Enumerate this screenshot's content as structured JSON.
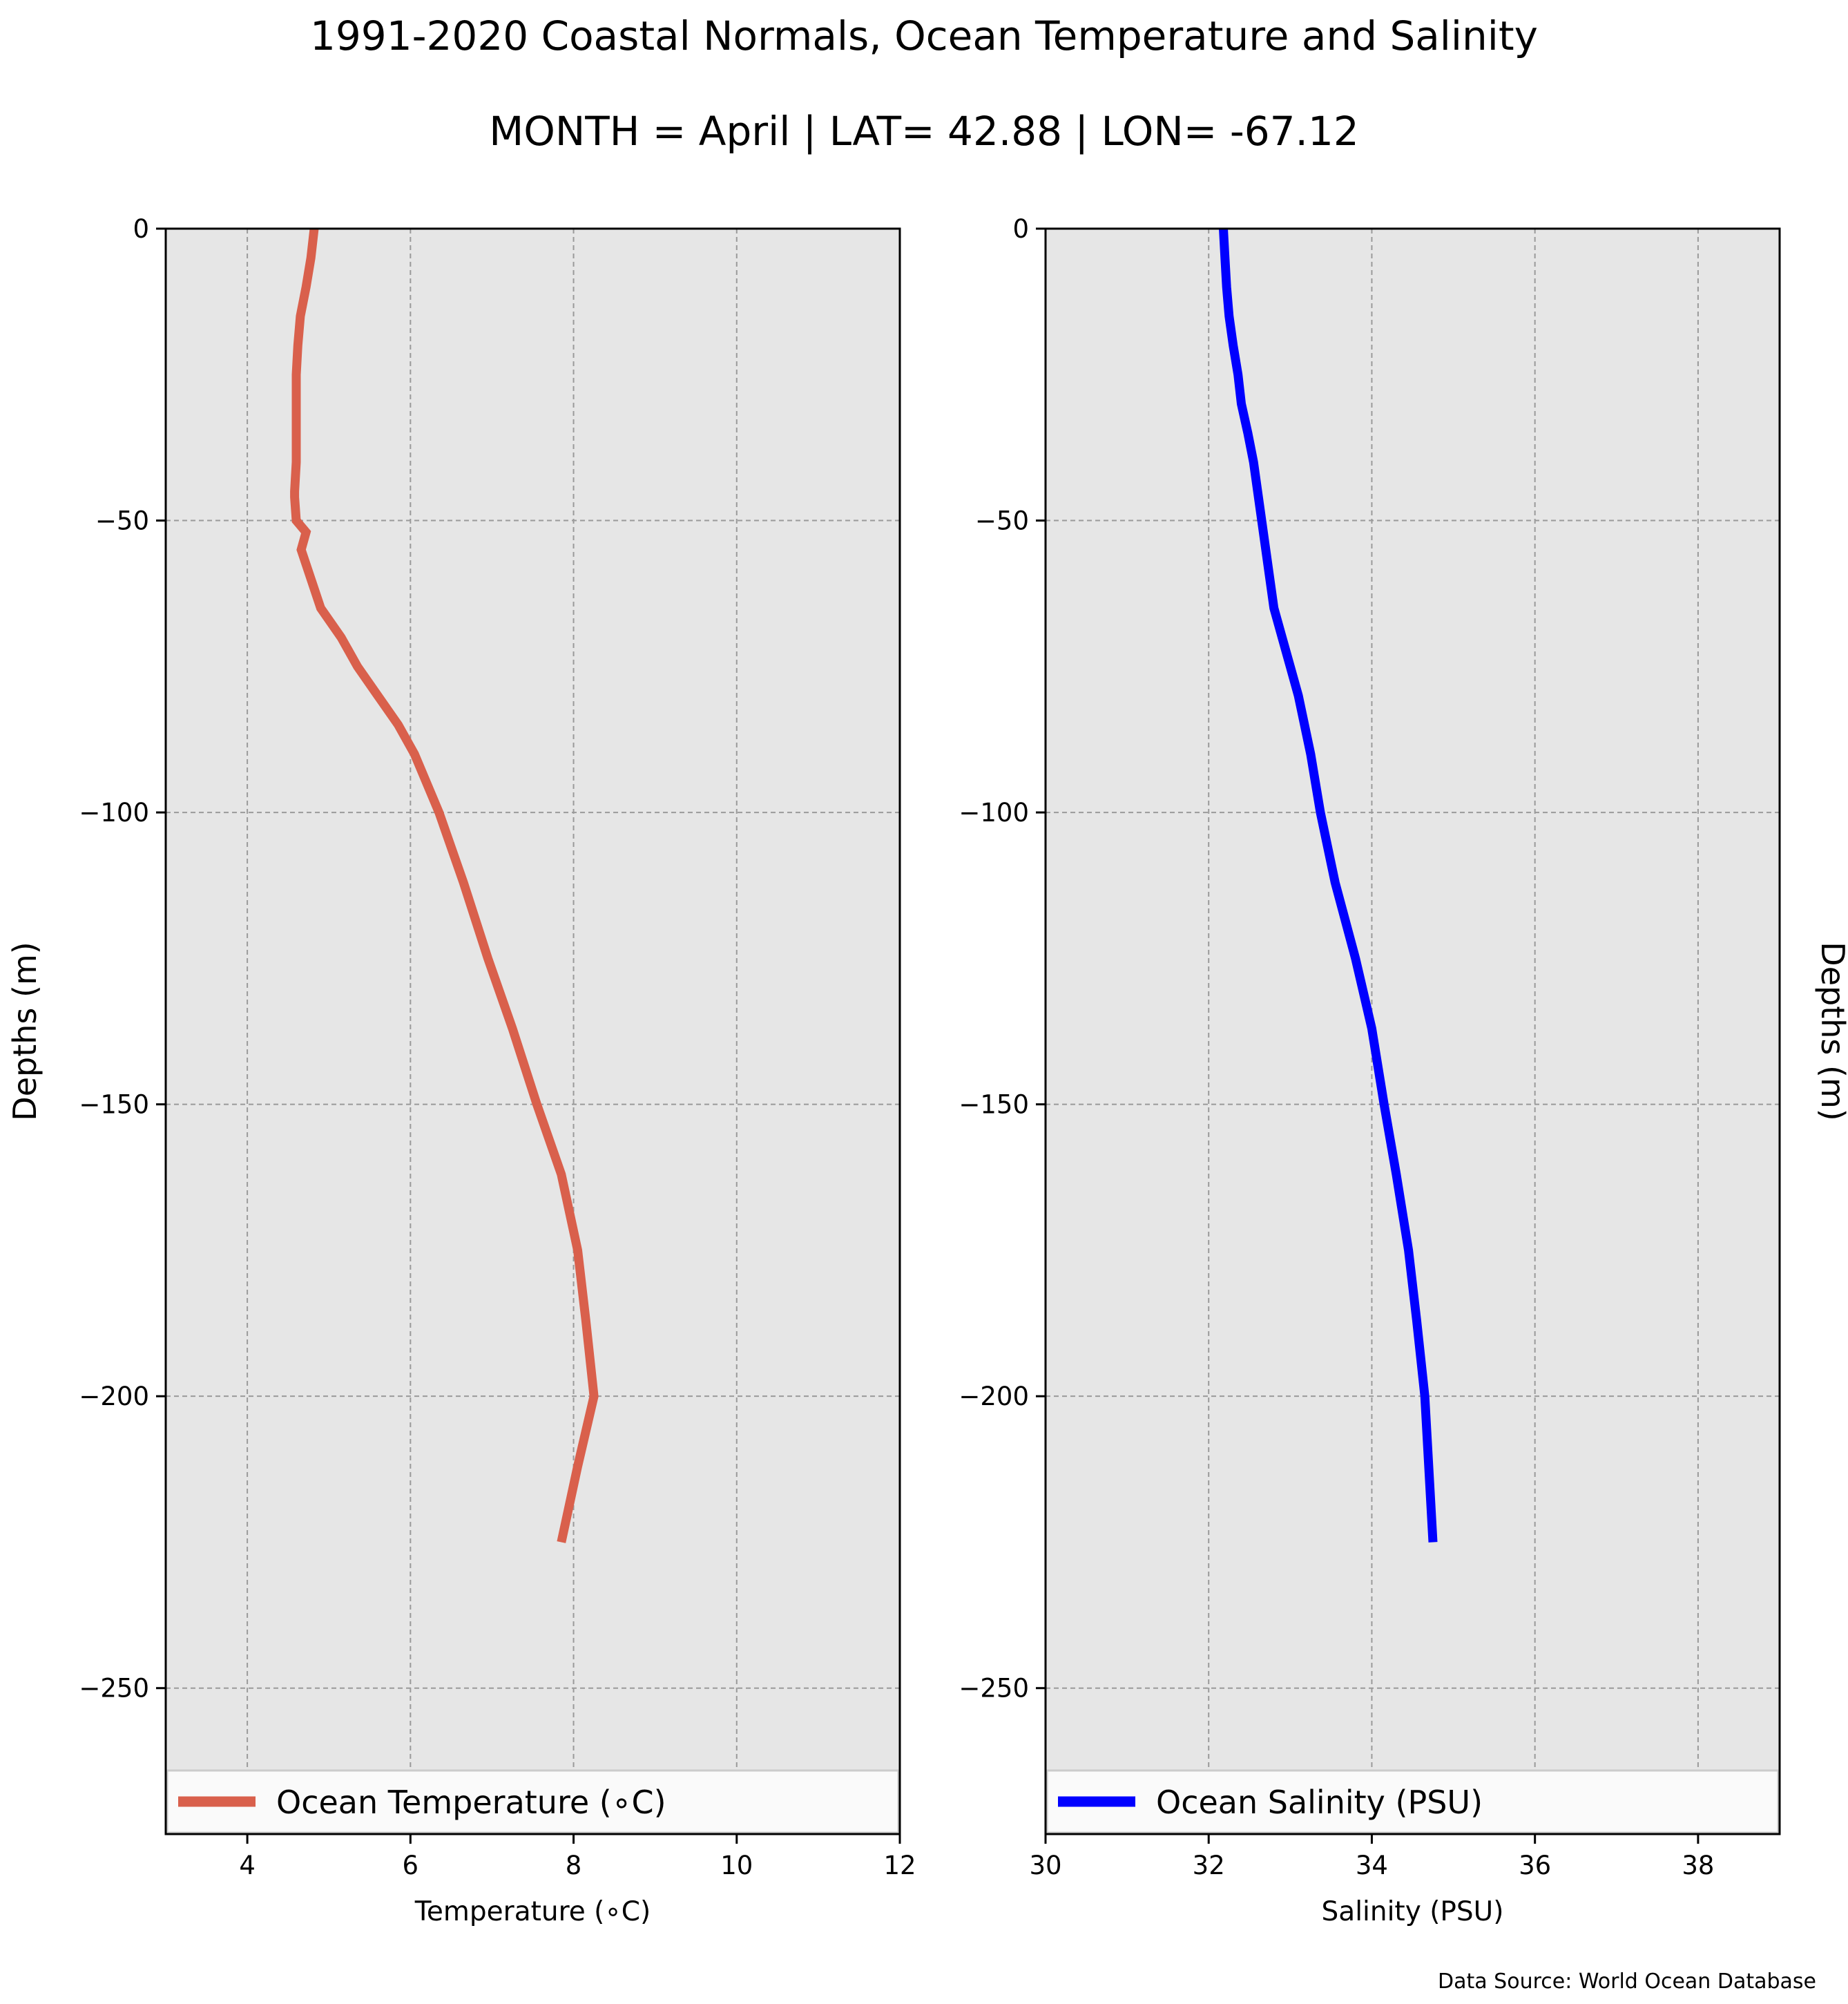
{
  "title": "1991-2020 Coastal Normals, Ocean Temperature and Salinity",
  "subtitle": "MONTH = April | LAT= 42.88 | LON= -67.12",
  "source_note": "Data Source: World Ocean Database",
  "chart_data": [
    {
      "type": "line",
      "xlabel": "Temperature (∘C)",
      "ylabel": "Depths (m)",
      "xlim": [
        3,
        12
      ],
      "ylim": [
        -275,
        0
      ],
      "xticks": [
        4,
        6,
        8,
        10,
        12
      ],
      "xtick_labels": [
        "4",
        "6",
        "8",
        "10",
        "12"
      ],
      "yticks": [
        0,
        -50,
        -100,
        -150,
        -200,
        -250
      ],
      "ytick_labels": [
        "0",
        "−50",
        "−100",
        "−150",
        "−200",
        "−250"
      ],
      "grid": true,
      "background": "#e6e6e6",
      "legend": "bottom",
      "series": [
        {
          "name": "Ocean Temperature (∘C)",
          "color": "#d9604c",
          "x": [
            4.82,
            4.78,
            4.72,
            4.65,
            4.62,
            4.6,
            4.6,
            4.6,
            4.6,
            4.58,
            4.58,
            4.6,
            4.72,
            4.66,
            4.9,
            5.15,
            5.35,
            5.6,
            5.85,
            6.05,
            6.35,
            6.65,
            6.95,
            7.25,
            7.55,
            7.85,
            8.05,
            8.15,
            8.25,
            8.05,
            7.85
          ],
          "y": [
            0,
            -5,
            -10,
            -15,
            -20,
            -25,
            -30,
            -35,
            -40,
            -45,
            -46,
            -50,
            -52,
            -55,
            -65,
            -70,
            -75,
            -80,
            -85,
            -90,
            -100,
            -112,
            -125,
            -137,
            -150,
            -162,
            -175,
            -187,
            -200,
            -212,
            -225
          ]
        }
      ]
    },
    {
      "type": "line",
      "xlabel": "Salinity (PSU)",
      "ylabel": "Depths (m)",
      "xlim": [
        30,
        39
      ],
      "ylim": [
        -275,
        0
      ],
      "xticks": [
        30,
        32,
        34,
        36,
        38
      ],
      "xtick_labels": [
        "30",
        "32",
        "34",
        "36",
        "38"
      ],
      "yticks": [
        0,
        -50,
        -100,
        -150,
        -200,
        -250
      ],
      "ytick_labels": [
        "0",
        "−50",
        "−100",
        "−150",
        "−200",
        "−250"
      ],
      "grid": true,
      "background": "#e6e6e6",
      "legend": "bottom",
      "series": [
        {
          "name": "Ocean Salinity (PSU)",
          "color": "#0000ff",
          "x": [
            32.18,
            32.2,
            32.22,
            32.25,
            32.3,
            32.36,
            32.4,
            32.48,
            32.55,
            32.6,
            32.65,
            32.8,
            32.9,
            33.0,
            33.1,
            33.25,
            33.37,
            33.55,
            33.8,
            34.0,
            34.15,
            34.3,
            34.45,
            34.55,
            34.65,
            34.75
          ],
          "y": [
            0,
            -5,
            -10,
            -15,
            -20,
            -25,
            -30,
            -35,
            -40,
            -45,
            -50,
            -65,
            -70,
            -75,
            -80,
            -90,
            -100,
            -112,
            -125,
            -137,
            -150,
            -162,
            -175,
            -187,
            -200,
            -225
          ]
        }
      ]
    }
  ]
}
